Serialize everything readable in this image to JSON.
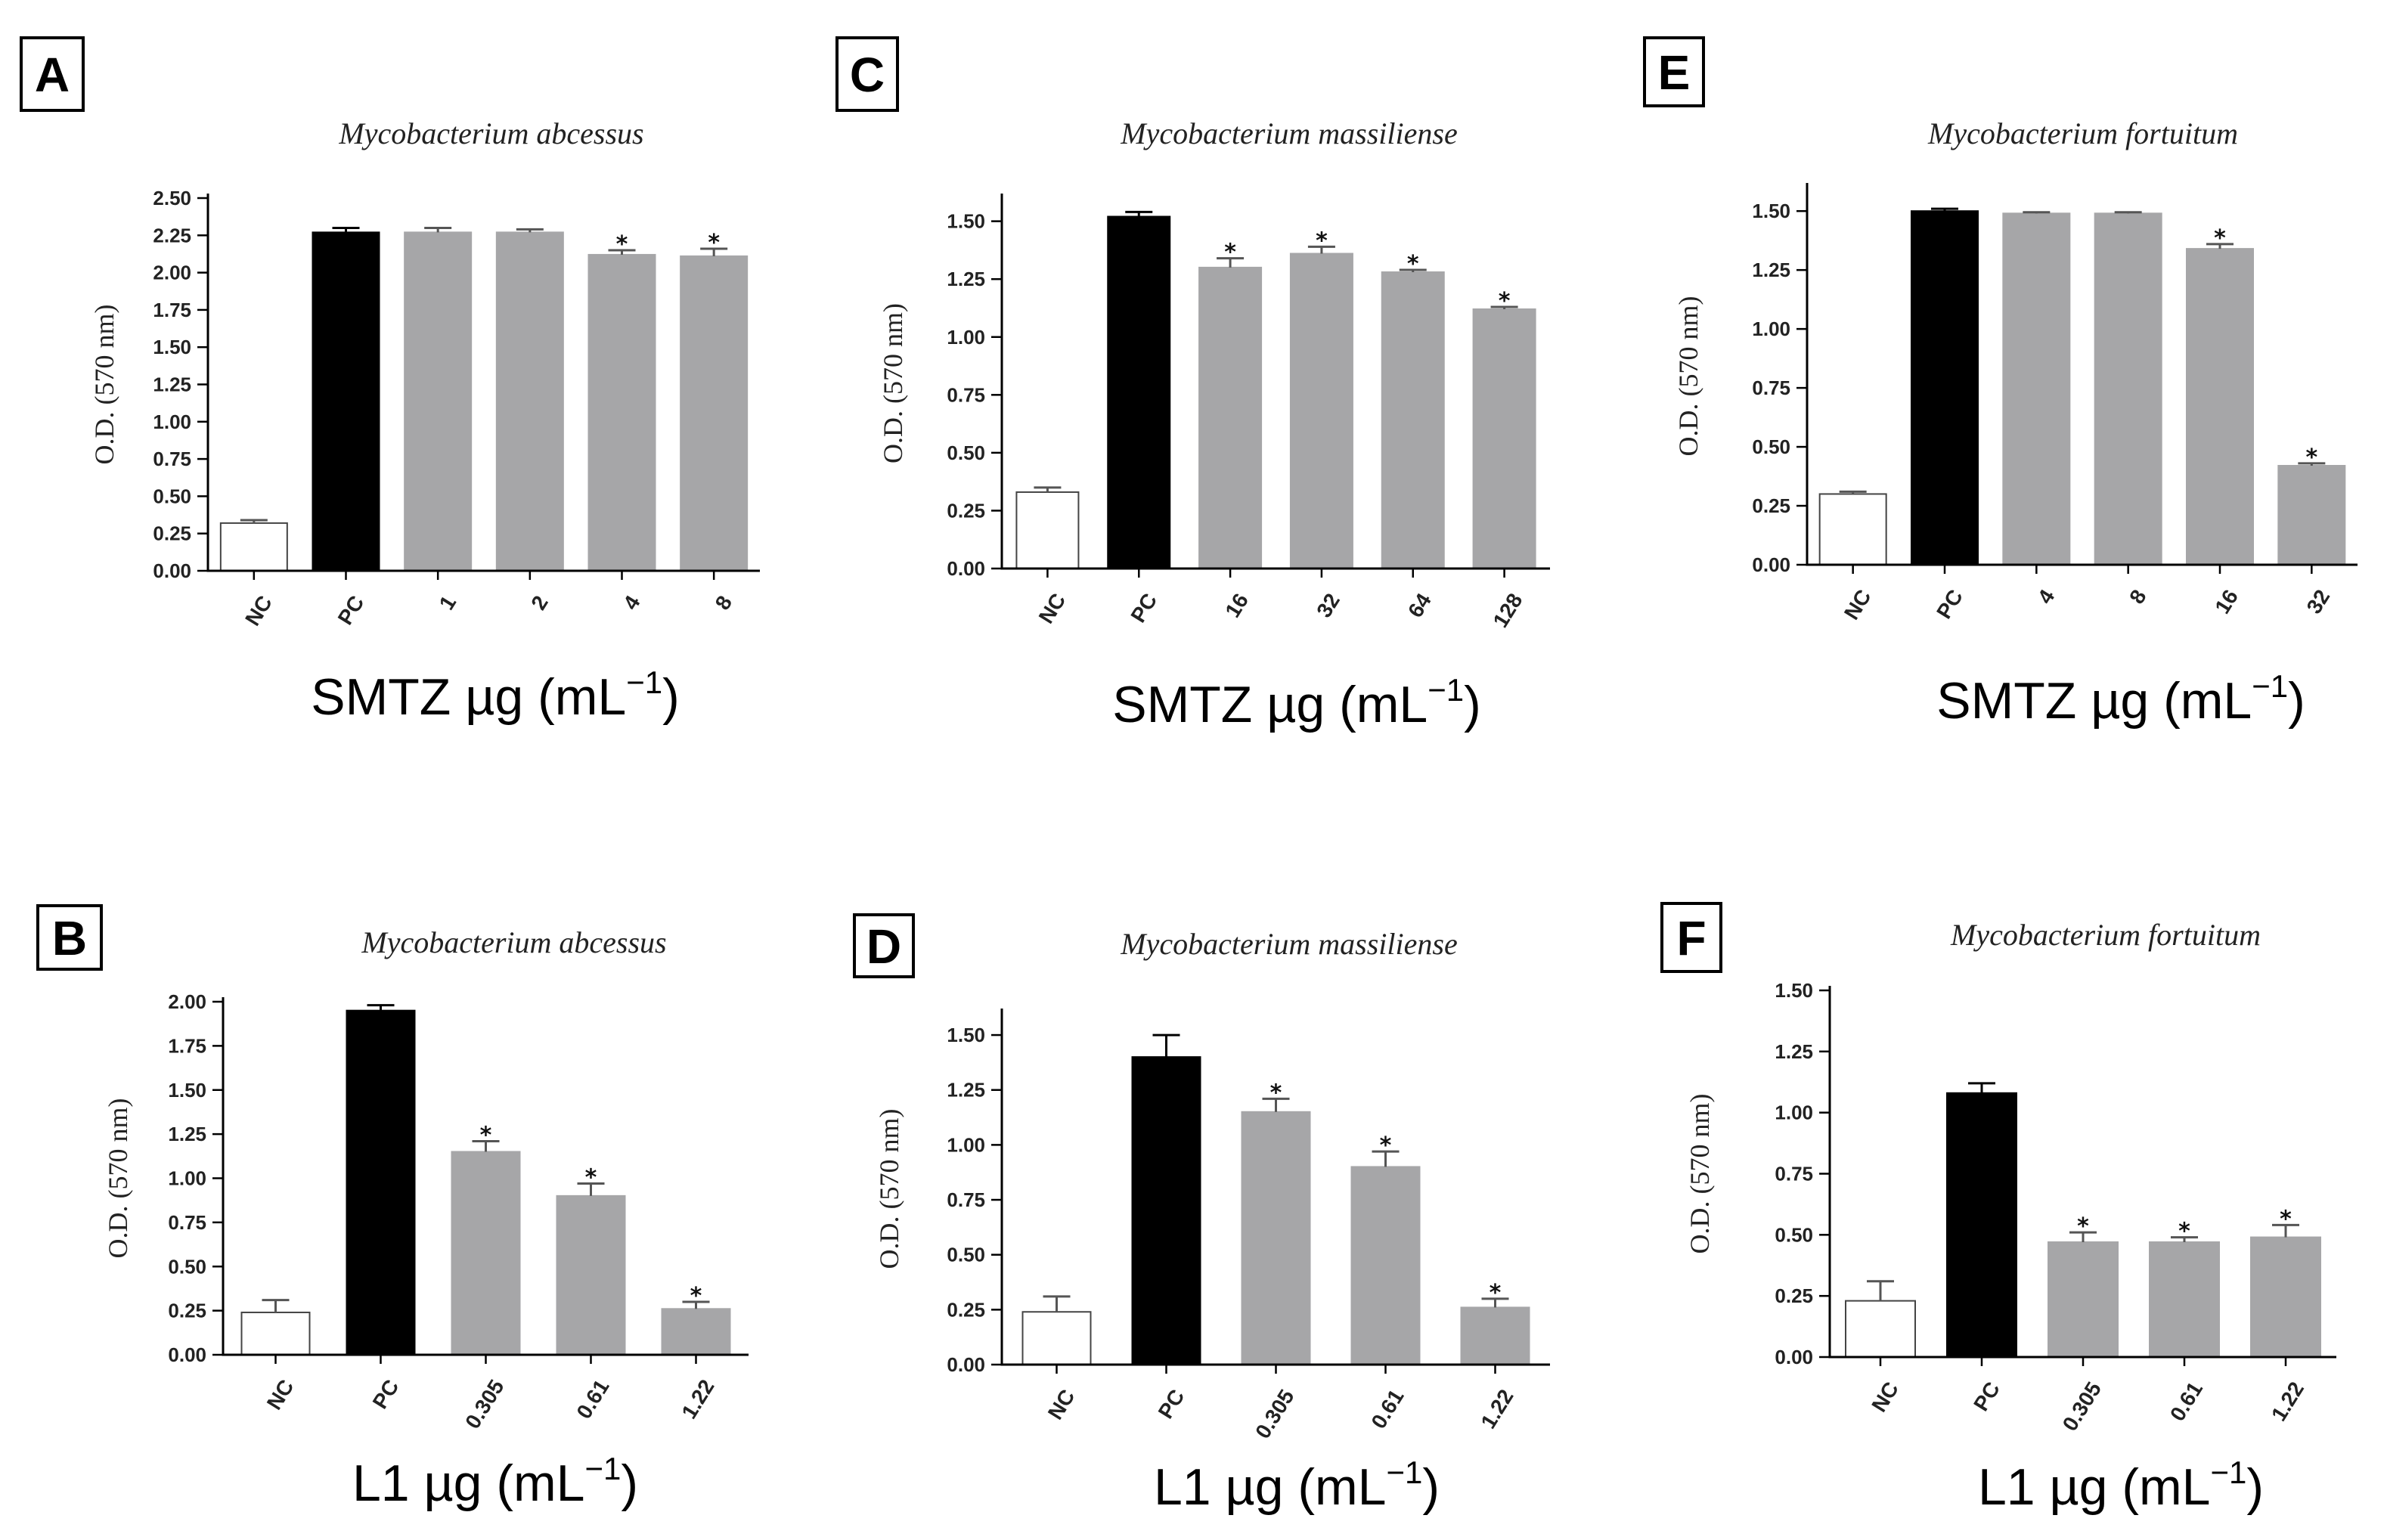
{
  "chart_data": [
    {
      "panel": "A",
      "type": "bar",
      "title": "Mycobacterium abcessus",
      "ylabel": "O.D. (570 nm)",
      "xlabel": "SMTZ µg (mL",
      "xlabel_sup": "−1",
      "xlabel_tail": ")",
      "categories": [
        "NC",
        "PC",
        "1",
        "2",
        "4",
        "8"
      ],
      "values": [
        0.32,
        2.27,
        2.27,
        2.27,
        2.12,
        2.11
      ],
      "errors": [
        0.02,
        0.03,
        0.03,
        0.02,
        0.03,
        0.05
      ],
      "significant": [
        false,
        false,
        false,
        false,
        true,
        true
      ],
      "ylim": [
        0,
        2.5
      ],
      "yticks": [
        "0.00",
        "0.25",
        "0.50",
        "0.75",
        "1.00",
        "1.25",
        "1.50",
        "1.75",
        "2.00",
        "2.25",
        "2.50"
      ],
      "colors": [
        "#ffffff",
        "#000000",
        "#a6a6a8",
        "#a6a6a8",
        "#a6a6a8",
        "#a6a6a8"
      ]
    },
    {
      "panel": "B",
      "type": "bar",
      "title": "Mycobacterium abcessus",
      "ylabel": "O.D. (570 nm)",
      "xlabel": "L1 µg (mL",
      "xlabel_sup": "−1",
      "xlabel_tail": ")",
      "categories": [
        "NC",
        "PC",
        "0.305",
        "0.61",
        "1.22"
      ],
      "values": [
        0.24,
        1.95,
        1.15,
        0.9,
        0.26
      ],
      "errors": [
        0.07,
        0.03,
        0.06,
        0.07,
        0.04
      ],
      "significant": [
        false,
        false,
        true,
        true,
        true
      ],
      "ylim": [
        0,
        2.0
      ],
      "yticks": [
        "0.00",
        "0.25",
        "0.50",
        "0.75",
        "1.00",
        "1.25",
        "1.50",
        "1.75",
        "2.00"
      ],
      "colors": [
        "#ffffff",
        "#000000",
        "#a6a6a8",
        "#a6a6a8",
        "#a6a6a8"
      ]
    },
    {
      "panel": "C",
      "type": "bar",
      "title": "Mycobacterium massiliense",
      "ylabel": "O.D. (570 nm)",
      "xlabel": "SMTZ µg (mL",
      "xlabel_sup": "−1",
      "xlabel_tail": ")",
      "categories": [
        "NC",
        "PC",
        "16",
        "32",
        "64",
        "128"
      ],
      "values": [
        0.33,
        1.52,
        1.3,
        1.36,
        1.28,
        1.12
      ],
      "errors": [
        0.02,
        0.02,
        0.04,
        0.03,
        0.01,
        0.01
      ],
      "significant": [
        false,
        false,
        true,
        true,
        true,
        true
      ],
      "ylim": [
        0,
        1.6
      ],
      "yticks": [
        "0.00",
        "0.25",
        "0.50",
        "0.75",
        "1.00",
        "1.25",
        "1.50"
      ],
      "colors": [
        "#ffffff",
        "#000000",
        "#a6a6a8",
        "#a6a6a8",
        "#a6a6a8",
        "#a6a6a8"
      ]
    },
    {
      "panel": "D",
      "type": "bar",
      "title": "Mycobacterium massiliense",
      "ylabel": "O.D. (570 nm)",
      "xlabel": "L1 µg (mL",
      "xlabel_sup": "−1",
      "xlabel_tail": ")",
      "categories": [
        "NC",
        "PC",
        "0.305",
        "0.61",
        "1.22"
      ],
      "values": [
        0.24,
        1.4,
        1.15,
        0.9,
        0.26
      ],
      "errors": [
        0.07,
        0.1,
        0.06,
        0.07,
        0.04
      ],
      "significant": [
        false,
        false,
        true,
        true,
        true
      ],
      "ylim": [
        0,
        1.6
      ],
      "yticks": [
        "0.00",
        "0.25",
        "0.50",
        "0.75",
        "1.00",
        "1.25",
        "1.50"
      ],
      "colors": [
        "#ffffff",
        "#000000",
        "#a6a6a8",
        "#a6a6a8",
        "#a6a6a8"
      ]
    },
    {
      "panel": "E",
      "type": "bar",
      "title": "Mycobacterium fortuitum",
      "ylabel": "O.D. (570 nm)",
      "xlabel": "SMTZ µg (mL",
      "xlabel_sup": "−1",
      "xlabel_tail": ")",
      "categories": [
        "NC",
        "PC",
        "4",
        "8",
        "16",
        "32"
      ],
      "values": [
        0.3,
        1.5,
        1.49,
        1.49,
        1.34,
        0.42
      ],
      "errors": [
        0.01,
        0.01,
        0.005,
        0.005,
        0.02,
        0.01
      ],
      "significant": [
        false,
        false,
        false,
        false,
        true,
        true
      ],
      "ylim": [
        0,
        1.6
      ],
      "yticks": [
        "0.00",
        "0.25",
        "0.50",
        "0.75",
        "1.00",
        "1.25",
        "1.50"
      ],
      "colors": [
        "#ffffff",
        "#000000",
        "#a6a6a8",
        "#a6a6a8",
        "#a6a6a8",
        "#a6a6a8"
      ]
    },
    {
      "panel": "F",
      "type": "bar",
      "title": "Mycobacterium fortuitum",
      "ylabel": "O.D. (570 nm)",
      "xlabel": "L1 µg (mL",
      "xlabel_sup": "−1",
      "xlabel_tail": ")",
      "categories": [
        "NC",
        "PC",
        "0.305",
        "0.61",
        "1.22"
      ],
      "values": [
        0.23,
        1.08,
        0.47,
        0.47,
        0.49
      ],
      "errors": [
        0.08,
        0.04,
        0.04,
        0.02,
        0.05
      ],
      "significant": [
        false,
        false,
        true,
        true,
        true
      ],
      "ylim": [
        0,
        1.5
      ],
      "yticks": [
        "0.00",
        "0.25",
        "0.50",
        "0.75",
        "1.00",
        "1.25",
        "1.50"
      ],
      "colors": [
        "#ffffff",
        "#000000",
        "#a6a6a8",
        "#a6a6a8",
        "#a6a6a8"
      ]
    }
  ],
  "star_symbol": "*"
}
